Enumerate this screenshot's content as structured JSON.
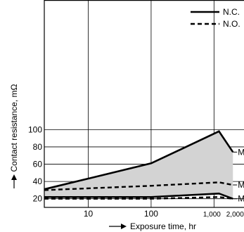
{
  "chart_data": {
    "type": "line",
    "title": "",
    "xlabel": "Exposure time, hr",
    "ylabel": "Contact resistance, mΩ",
    "x_scale": "log",
    "xlim": [
      2,
      3000
    ],
    "ylim": [
      10,
      250
    ],
    "x_ticks": [
      {
        "value": 10,
        "label": "10"
      },
      {
        "value": 100,
        "label": "100"
      },
      {
        "value": 1000,
        "label": "1,000"
      },
      {
        "value": 2000,
        "label": "2,000"
      }
    ],
    "y_ticks": [
      {
        "value": 20,
        "label": "20"
      },
      {
        "value": 40,
        "label": "40"
      },
      {
        "value": 60,
        "label": "60"
      },
      {
        "value": 80,
        "label": "80"
      },
      {
        "value": 100,
        "label": "100"
      }
    ],
    "grid": true,
    "legend": {
      "placement": "top-right",
      "entries": [
        {
          "label": "N.C.",
          "style": "solid"
        },
        {
          "label": "N.O.",
          "style": "dashed"
        }
      ]
    },
    "series": [
      {
        "name": "N.C.",
        "style": "solid",
        "role": "Max",
        "label": "Max",
        "x": [
          2,
          100,
          1200,
          2000
        ],
        "y": [
          31,
          61,
          98,
          74
        ]
      },
      {
        "name": "N.C.",
        "style": "solid",
        "role": "Min",
        "label": "Min",
        "x": [
          2,
          100,
          1200,
          2000
        ],
        "y": [
          22,
          22,
          26,
          20
        ]
      },
      {
        "name": "N.O.",
        "style": "dashed",
        "role": "Max",
        "label": "Max",
        "x": [
          2,
          100,
          1200,
          2000
        ],
        "y": [
          30,
          35,
          39,
          36
        ]
      },
      {
        "name": "N.O.",
        "style": "dashed",
        "role": "Min",
        "x": [
          2,
          100,
          1200,
          2000
        ],
        "y": [
          20,
          20,
          22,
          20
        ]
      }
    ],
    "colors": {
      "band_fill": "#d3d3d3",
      "line": "#000000",
      "grid": "#000000"
    }
  }
}
